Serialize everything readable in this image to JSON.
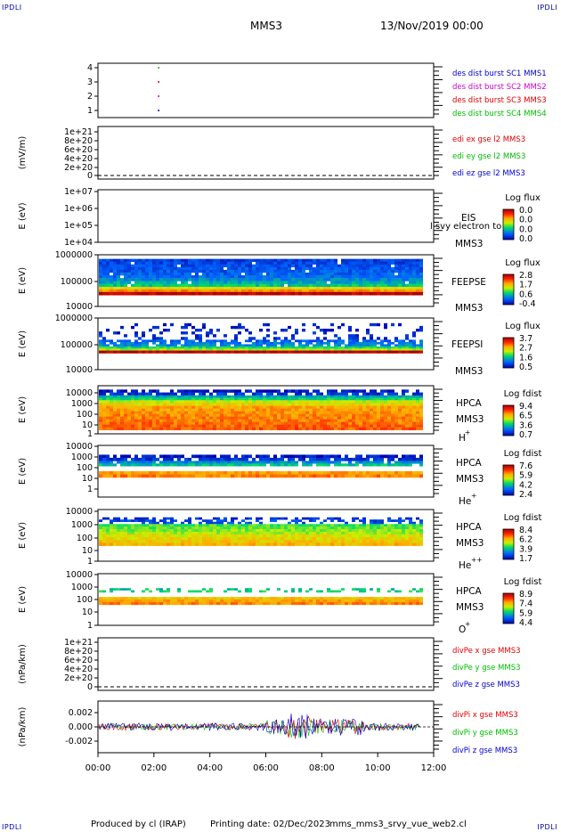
{
  "corner_label": "IPDLI",
  "header": {
    "mission": "MMS3",
    "datetime": "13/Nov/2019 00:00"
  },
  "footer": {
    "produced_by": "Produced by cl (IRAP)",
    "printing_date": "Printing date: 02/Dec/2023",
    "filename": "mms_mms3_srvy_vue_web2.cl"
  },
  "colors": {
    "red": "#dd0000",
    "green": "#00bb00",
    "blue": "#0000cc",
    "magenta": "#cc00cc",
    "dash": "#000000"
  },
  "chart_data": [
    {
      "type": "scatter",
      "panel": "burst",
      "ylabel": "",
      "ticks": [
        "4",
        "3",
        "2",
        "1"
      ],
      "ylim": [
        0.5,
        4.5
      ],
      "series": [
        {
          "name": "des dist burst SC1 MMS1",
          "color": "#0000cc",
          "x": [
            2.2
          ],
          "y": [
            1
          ]
        },
        {
          "name": "des dist burst SC2 MMS2",
          "color": "#cc00cc",
          "x": [
            2.2
          ],
          "y": [
            2
          ]
        },
        {
          "name": "des dist burst SC3 MMS3",
          "color": "#dd0000",
          "x": [
            2.2
          ],
          "y": [
            3
          ]
        },
        {
          "name": "des dist burst SC4 MMS4",
          "color": "#00bb00",
          "x": [
            2.2
          ],
          "y": [
            4
          ]
        }
      ]
    },
    {
      "type": "line",
      "panel": "edi",
      "ylabel": "(mV/m)",
      "ticks": [
        "1e+21",
        "8e+20",
        "6e+20",
        "4e+20",
        "2e+20",
        "0"
      ],
      "series": [
        {
          "name": "edi ex gse l2 MMS3",
          "color": "#dd0000"
        },
        {
          "name": "edi ey gse l2 MMS3",
          "color": "#00bb00"
        },
        {
          "name": "edi ez gse l2 MMS3",
          "color": "#0000cc"
        }
      ]
    },
    {
      "type": "heatmap",
      "panel": "eis",
      "ylabel": "E (eV)",
      "ticks": [
        "1e+07",
        "1e+06",
        "1e+05",
        "1e+04"
      ],
      "labels": [
        "EIS",
        "MMS3"
      ],
      "overlay": "l svy electron to",
      "colorbar_title": "Log flux",
      "colorbar_ticks": [
        "0.0",
        "0.0",
        "0.0",
        "0.0"
      ]
    },
    {
      "type": "heatmap",
      "panel": "feepse",
      "ylabel": "E (eV)",
      "ticks": [
        "1000000",
        "100000",
        "10000"
      ],
      "labels": [
        "FEEPSE",
        "MMS3"
      ],
      "colorbar_title": "Log flux",
      "colorbar_ticks": [
        "2.8",
        "1.7",
        "0.6",
        "-0.4"
      ]
    },
    {
      "type": "heatmap",
      "panel": "feepsi",
      "ylabel": "E (eV)",
      "ticks": [
        "1000000",
        "100000",
        "10000"
      ],
      "labels": [
        "FEEPSI",
        "MMS3"
      ],
      "colorbar_title": "Log flux",
      "colorbar_ticks": [
        "3.7",
        "2.7",
        "1.6",
        "0.5"
      ]
    },
    {
      "type": "heatmap",
      "panel": "hpca-h",
      "ylabel": "E (eV)",
      "ticks": [
        "10000",
        "1000",
        "100",
        "10",
        "1"
      ],
      "labels": [
        "HPCA",
        "MMS3"
      ],
      "species": "H",
      "charge": "+",
      "colorbar_title": "Log fdist",
      "colorbar_ticks": [
        "9.4",
        "6.5",
        "3.6",
        "0.7"
      ]
    },
    {
      "type": "heatmap",
      "panel": "hpca-he",
      "ylabel": "E (eV)",
      "ticks": [
        "10000",
        "1000",
        "100",
        "10",
        "1"
      ],
      "labels": [
        "HPCA",
        "MMS3"
      ],
      "species": "He",
      "charge": "+",
      "colorbar_title": "Log fdist",
      "colorbar_ticks": [
        "7.6",
        "5.9",
        "4.2",
        "2.4"
      ]
    },
    {
      "type": "heatmap",
      "panel": "hpca-hepp",
      "ylabel": "E (eV)",
      "ticks": [
        "10000",
        "1000",
        "100",
        "10",
        "1"
      ],
      "labels": [
        "HPCA",
        "MMS3"
      ],
      "species": "He",
      "charge": "++",
      "colorbar_title": "Log fdist",
      "colorbar_ticks": [
        "8.4",
        "6.2",
        "3.9",
        "1.7"
      ]
    },
    {
      "type": "heatmap",
      "panel": "hpca-o",
      "ylabel": "E (eV)",
      "ticks": [
        "10000",
        "1000",
        "100",
        "10",
        "1"
      ],
      "labels": [
        "HPCA",
        "MMS3"
      ],
      "species": "O",
      "charge": "+",
      "colorbar_title": "Log fdist",
      "colorbar_ticks": [
        "8.9",
        "7.4",
        "5.9",
        "4.4"
      ]
    },
    {
      "type": "line",
      "panel": "divpe",
      "ylabel": "(nPa/km)",
      "ticks": [
        "1e+21",
        "8e+20",
        "6e+20",
        "4e+20",
        "2e+20",
        "0"
      ],
      "series": [
        {
          "name": "divPe x gse MMS3",
          "color": "#dd0000"
        },
        {
          "name": "divPe y gse MMS3",
          "color": "#00bb00"
        },
        {
          "name": "divPe z gse MMS3",
          "color": "#0000cc"
        }
      ]
    },
    {
      "type": "line",
      "panel": "divpi",
      "ylabel": "(nPa/km)",
      "ticks": [
        "0.002",
        "0.000",
        "-0.002"
      ],
      "ylim": [
        -0.003,
        0.003
      ],
      "series": [
        {
          "name": "divPi x gse MMS3",
          "color": "#dd0000"
        },
        {
          "name": "divPi y gse MMS3",
          "color": "#00bb00"
        },
        {
          "name": "divPi z gse MMS3",
          "color": "#0000cc"
        }
      ]
    }
  ],
  "xaxis": {
    "ticks": [
      "00:00",
      "02:00",
      "04:00",
      "06:00",
      "08:00",
      "10:00",
      "12:00"
    ],
    "xlim": [
      0,
      12
    ]
  }
}
